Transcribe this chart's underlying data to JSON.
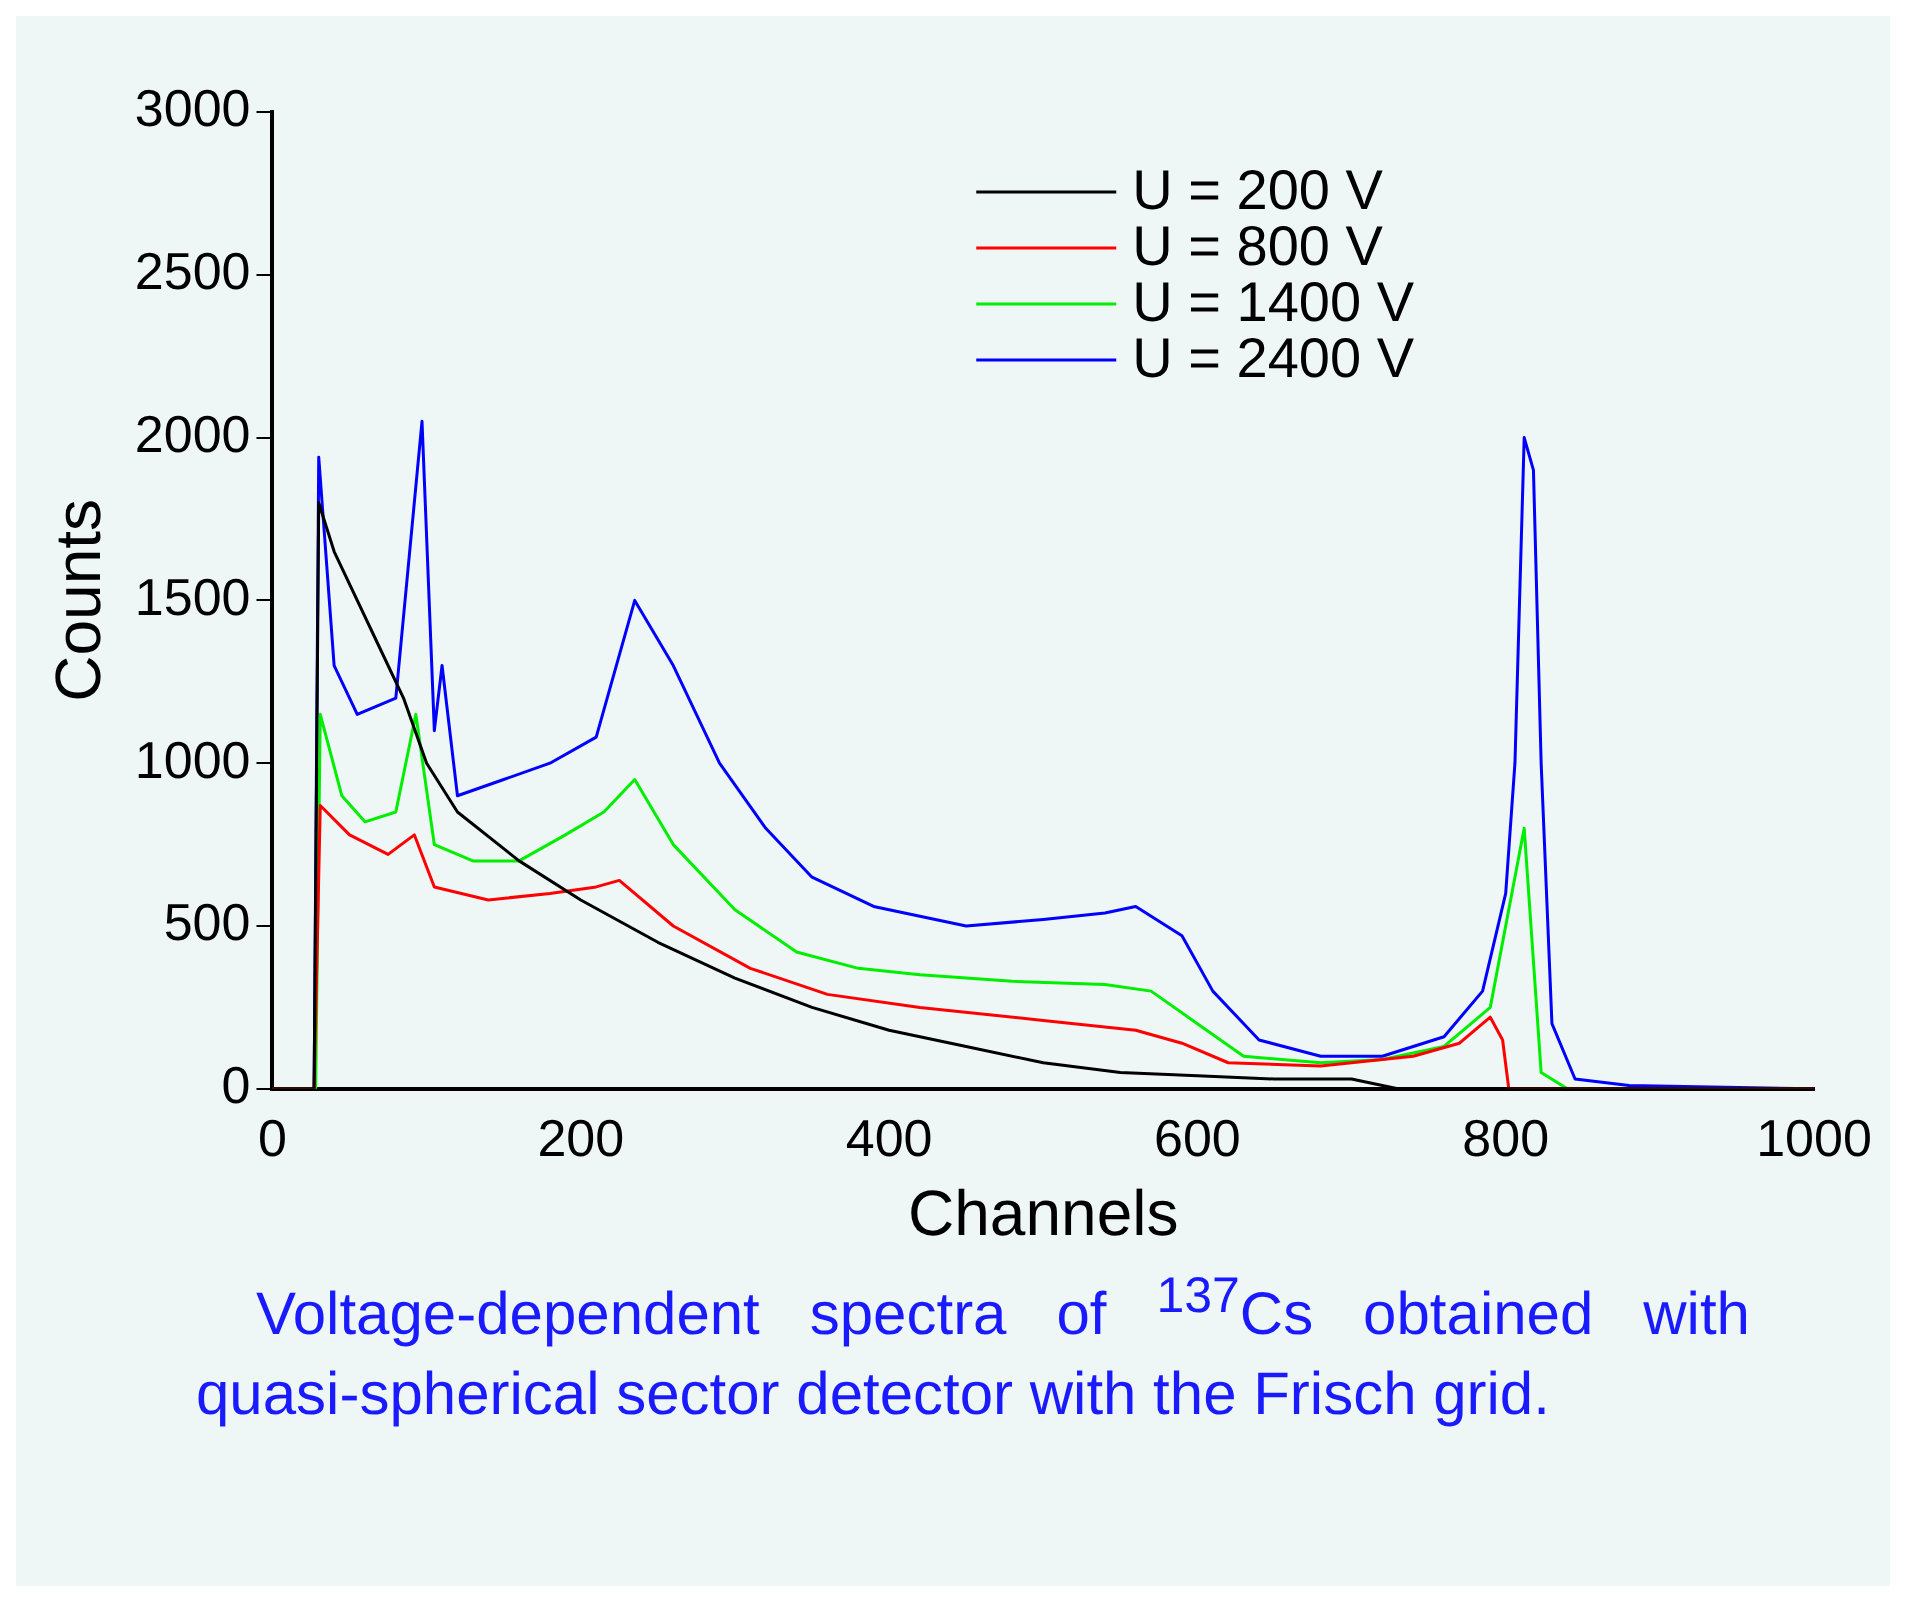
{
  "chart_data": {
    "type": "line",
    "xlabel": "Channels",
    "ylabel": "Counts",
    "xlim": [
      0,
      1000
    ],
    "xticks": [
      0,
      200,
      400,
      600,
      800,
      1000
    ],
    "ylim": [
      0,
      3000
    ],
    "yticks": [
      0,
      500,
      1000,
      1500,
      2000,
      2500,
      3000
    ],
    "grid": false,
    "legend": "top right",
    "marker": "none",
    "line_style": "solid",
    "annotations": [
      "Voltage-dependent spectra of $^{137}$Cs obtained with quasi-spherical sector detector with the Frisch grid."
    ],
    "series": [
      {
        "name": "U = 200 V",
        "color": "#000000",
        "x": [
          0,
          27,
          30,
          40,
          70,
          85,
          100,
          120,
          160,
          200,
          250,
          300,
          350,
          400,
          450,
          500,
          550,
          600,
          650,
          700,
          730,
          1000
        ],
        "values": [
          0,
          0,
          1800,
          1650,
          1350,
          1200,
          1000,
          850,
          700,
          580,
          450,
          340,
          250,
          180,
          130,
          80,
          50,
          40,
          30,
          30,
          0,
          0
        ]
      },
      {
        "name": "U = 800 V",
        "color": "#ff0000",
        "x": [
          0,
          27,
          31,
          50,
          75,
          92,
          105,
          140,
          180,
          210,
          225,
          260,
          310,
          360,
          420,
          500,
          560,
          590,
          620,
          680,
          740,
          770,
          790,
          798,
          802,
          1000
        ],
        "values": [
          0,
          0,
          870,
          780,
          720,
          780,
          620,
          580,
          600,
          620,
          640,
          500,
          370,
          290,
          250,
          210,
          180,
          140,
          80,
          70,
          100,
          140,
          220,
          150,
          0,
          0
        ]
      },
      {
        "name": "U = 1400 V",
        "color": "#00ee00",
        "x": [
          0,
          28,
          31,
          45,
          60,
          80,
          93,
          105,
          130,
          160,
          190,
          215,
          235,
          260,
          300,
          340,
          380,
          420,
          480,
          540,
          570,
          600,
          630,
          680,
          720,
          760,
          790,
          812,
          823,
          840,
          1000
        ],
        "values": [
          0,
          0,
          1150,
          900,
          820,
          850,
          1150,
          750,
          700,
          700,
          780,
          850,
          950,
          750,
          550,
          420,
          370,
          350,
          330,
          320,
          300,
          200,
          100,
          80,
          90,
          130,
          250,
          800,
          50,
          0,
          0
        ]
      },
      {
        "name": "U = 2400 V",
        "color": "#0000ff",
        "x": [
          0,
          27,
          30,
          40,
          55,
          80,
          97,
          105,
          110,
          120,
          150,
          180,
          210,
          235,
          260,
          290,
          320,
          350,
          390,
          420,
          450,
          500,
          540,
          560,
          590,
          610,
          640,
          680,
          720,
          760,
          785,
          800,
          806,
          812,
          818,
          823,
          830,
          845,
          880,
          1000
        ],
        "values": [
          0,
          0,
          1940,
          1300,
          1150,
          1200,
          2050,
          1100,
          1300,
          900,
          950,
          1000,
          1080,
          1500,
          1300,
          1000,
          800,
          650,
          560,
          530,
          500,
          520,
          540,
          560,
          470,
          300,
          150,
          100,
          100,
          160,
          300,
          600,
          1000,
          2000,
          1900,
          1000,
          200,
          30,
          10,
          0
        ]
      }
    ]
  }
}
